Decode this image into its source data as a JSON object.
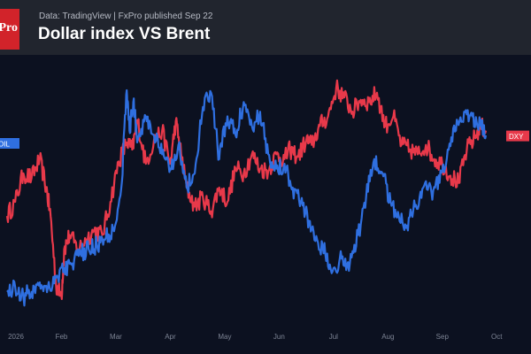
{
  "header": {
    "logo_text": "FxPro",
    "source_line": "Data: TradingView | FxPro published Sep 22",
    "title": "Dollar index VS Brent"
  },
  "colors": {
    "background": "#0c1120",
    "header_bg": "#21252e",
    "brand_red": "#d2232a",
    "dxy_red": "#e8394a",
    "brent_blue": "#2f6fe0"
  },
  "chart_data": {
    "type": "line",
    "title": "Dollar index VS Brent",
    "x_ticks": [
      "2026",
      "Feb",
      "Mar",
      "Apr",
      "May",
      "Jun",
      "Jul",
      "Aug",
      "Sep",
      "Oct"
    ],
    "xlim": [
      0,
      9.5
    ],
    "ylim": [
      0,
      100
    ],
    "grid": false,
    "legend": "axis-tags",
    "series": [
      {
        "name": "DXY",
        "color": "#e8394a",
        "x": [
          0.0,
          0.15,
          0.3,
          0.45,
          0.6,
          0.72,
          0.8,
          0.9,
          1.0,
          1.05,
          1.15,
          1.3,
          1.45,
          1.6,
          1.75,
          1.9,
          2.05,
          2.2,
          2.3,
          2.4,
          2.55,
          2.7,
          2.85,
          3.0,
          3.1,
          3.2,
          3.3,
          3.45,
          3.6,
          3.75,
          3.9,
          4.05,
          4.2,
          4.35,
          4.5,
          4.65,
          4.8,
          4.95,
          5.1,
          5.2,
          5.35,
          5.5,
          5.6,
          5.75,
          5.9,
          6.05,
          6.2,
          6.35,
          6.5,
          6.65,
          6.8,
          6.95,
          7.1,
          7.25,
          7.4,
          7.55,
          7.7,
          7.85,
          8.0,
          8.15,
          8.3,
          8.45,
          8.6,
          8.7,
          8.8
        ],
        "values": [
          44,
          50,
          62,
          60,
          68,
          56,
          44,
          15,
          10,
          30,
          36,
          30,
          34,
          38,
          36,
          50,
          67,
          75,
          72,
          84,
          66,
          76,
          80,
          66,
          84,
          70,
          56,
          48,
          52,
          46,
          56,
          50,
          64,
          62,
          70,
          64,
          63,
          70,
          68,
          72,
          69,
          76,
          74,
          82,
          86,
          98,
          94,
          88,
          93,
          92,
          96,
          82,
          86,
          74,
          72,
          70,
          74,
          68,
          66,
          61,
          58,
          72,
          77,
          82,
          80
        ]
      },
      {
        "name": "UKOIL",
        "color": "#2f6fe0",
        "x": [
          0.0,
          0.15,
          0.3,
          0.45,
          0.6,
          0.75,
          0.9,
          1.05,
          1.2,
          1.35,
          1.5,
          1.65,
          1.8,
          1.95,
          2.1,
          2.2,
          2.25,
          2.32,
          2.4,
          2.55,
          2.7,
          2.85,
          3.0,
          3.15,
          3.3,
          3.45,
          3.6,
          3.75,
          3.9,
          4.05,
          4.2,
          4.35,
          4.5,
          4.65,
          4.8,
          4.95,
          5.1,
          5.25,
          5.4,
          5.55,
          5.7,
          5.85,
          6.0,
          6.15,
          6.3,
          6.45,
          6.6,
          6.75,
          6.9,
          7.05,
          7.2,
          7.35,
          7.5,
          7.65,
          7.8,
          7.95,
          8.1,
          8.25,
          8.4,
          8.55,
          8.7,
          8.8
        ],
        "values": [
          12,
          14,
          10,
          12,
          16,
          14,
          18,
          22,
          24,
          28,
          30,
          32,
          34,
          38,
          56,
          97,
          80,
          92,
          76,
          86,
          78,
          70,
          64,
          74,
          56,
          62,
          90,
          96,
          68,
          86,
          78,
          92,
          82,
          88,
          70,
          64,
          66,
          56,
          50,
          42,
          34,
          28,
          22,
          26,
          24,
          36,
          52,
          68,
          62,
          50,
          44,
          40,
          48,
          56,
          54,
          58,
          72,
          80,
          88,
          86,
          82,
          78
        ]
      }
    ]
  }
}
